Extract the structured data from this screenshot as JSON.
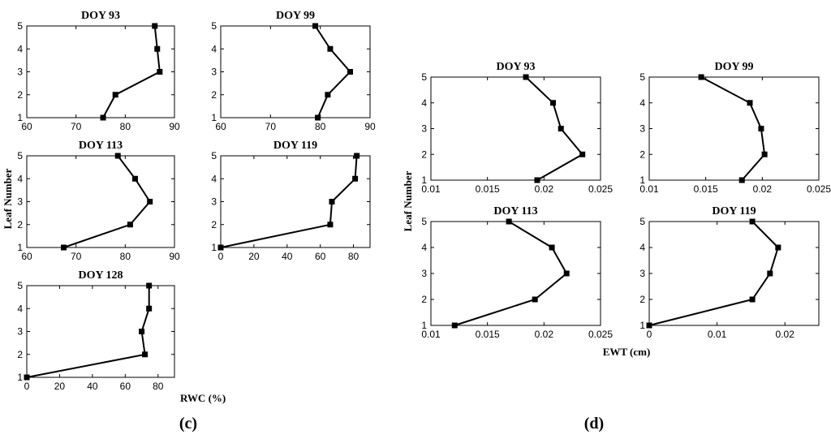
{
  "figure": {
    "left_panel_label": "(c)",
    "right_panel_label": "(d)",
    "left_xlabel": "RWC (%)",
    "left_ylabel": "Leaf Number",
    "right_xlabel": "EWT (cm)",
    "right_ylabel": "Leaf Number"
  },
  "colors": {
    "line": "#000000",
    "marker": "#000000",
    "background": "#ffffff"
  },
  "chart_data": [
    {
      "type": "line",
      "panel": "c",
      "title": "DOY 93",
      "x": [
        75.5,
        78,
        87,
        86.5,
        86
      ],
      "y": [
        1,
        2,
        3,
        4,
        5
      ],
      "xlim": [
        60,
        90
      ],
      "xticks": [
        60,
        70,
        80,
        90
      ],
      "ylim": [
        1,
        5
      ],
      "yticks": [
        1,
        2,
        3,
        4,
        5
      ],
      "xlabel": "",
      "ylabel": ""
    },
    {
      "type": "line",
      "panel": "c",
      "title": "DOY 99",
      "x": [
        79.5,
        81.5,
        86,
        82,
        79
      ],
      "y": [
        1,
        2,
        3,
        4,
        5
      ],
      "xlim": [
        60,
        90
      ],
      "xticks": [
        60,
        70,
        80,
        90
      ],
      "ylim": [
        1,
        5
      ],
      "yticks": [
        1,
        2,
        3,
        4,
        5
      ],
      "xlabel": "",
      "ylabel": ""
    },
    {
      "type": "line",
      "panel": "c",
      "title": "DOY 113",
      "x": [
        67.5,
        81,
        85,
        82,
        78.5
      ],
      "y": [
        1,
        2,
        3,
        4,
        5
      ],
      "xlim": [
        60,
        90
      ],
      "xticks": [
        60,
        70,
        80,
        90
      ],
      "ylim": [
        1,
        5
      ],
      "yticks": [
        1,
        2,
        3,
        4,
        5
      ],
      "xlabel": "",
      "ylabel": "Leaf Number"
    },
    {
      "type": "line",
      "panel": "c",
      "title": "DOY 119",
      "x": [
        0,
        66,
        67,
        81,
        82
      ],
      "y": [
        1,
        2,
        3,
        4,
        5
      ],
      "xlim": [
        0,
        90
      ],
      "xticks": [
        0,
        20,
        40,
        60,
        80
      ],
      "ylim": [
        1,
        5
      ],
      "yticks": [
        1,
        2,
        3,
        4,
        5
      ],
      "xlabel": "",
      "ylabel": ""
    },
    {
      "type": "line",
      "panel": "c",
      "title": "DOY 128",
      "x": [
        0,
        72,
        70,
        74.5,
        74.5
      ],
      "y": [
        1,
        2,
        3,
        4,
        5
      ],
      "xlim": [
        0,
        90
      ],
      "xticks": [
        0,
        20,
        40,
        60,
        80
      ],
      "ylim": [
        1,
        5
      ],
      "yticks": [
        1,
        2,
        3,
        4,
        5
      ],
      "xlabel": "RWC (%)",
      "ylabel": ""
    },
    {
      "type": "line",
      "panel": "d",
      "title": "DOY 93",
      "x": [
        0.0194,
        0.0234,
        0.0215,
        0.0208,
        0.0184
      ],
      "y": [
        1,
        2,
        3,
        4,
        5
      ],
      "xlim": [
        0.01,
        0.025
      ],
      "xticks": [
        0.01,
        0.015,
        0.02,
        0.025
      ],
      "ylim": [
        1,
        5
      ],
      "yticks": [
        1,
        2,
        3,
        4,
        5
      ],
      "xlabel": "",
      "ylabel": ""
    },
    {
      "type": "line",
      "panel": "d",
      "title": "DOY 99",
      "x": [
        0.0182,
        0.0202,
        0.0199,
        0.0189,
        0.0146
      ],
      "y": [
        1,
        2,
        3,
        4,
        5
      ],
      "xlim": [
        0.01,
        0.025
      ],
      "xticks": [
        0.01,
        0.015,
        0.02,
        0.025
      ],
      "ylim": [
        1,
        5
      ],
      "yticks": [
        1,
        2,
        3,
        4,
        5
      ],
      "xlabel": "",
      "ylabel": ""
    },
    {
      "type": "line",
      "panel": "d",
      "title": "DOY 113",
      "x": [
        0.0121,
        0.0192,
        0.022,
        0.0207,
        0.0169
      ],
      "y": [
        1,
        2,
        3,
        4,
        5
      ],
      "xlim": [
        0.01,
        0.025
      ],
      "xticks": [
        0.01,
        0.015,
        0.02,
        0.025
      ],
      "ylim": [
        1,
        5
      ],
      "yticks": [
        1,
        2,
        3,
        4,
        5
      ],
      "xlabel": "",
      "ylabel": "Leaf Number"
    },
    {
      "type": "line",
      "panel": "d",
      "title": "DOY 119",
      "x": [
        0,
        0.0152,
        0.0178,
        0.019,
        0.0152
      ],
      "y": [
        1,
        2,
        3,
        4,
        5
      ],
      "xlim": [
        0,
        0.025
      ],
      "xticks": [
        0,
        0.01,
        0.02
      ],
      "ylim": [
        1,
        5
      ],
      "yticks": [
        1,
        2,
        3,
        4,
        5
      ],
      "xlabel": "EWT (cm)",
      "ylabel": ""
    }
  ]
}
